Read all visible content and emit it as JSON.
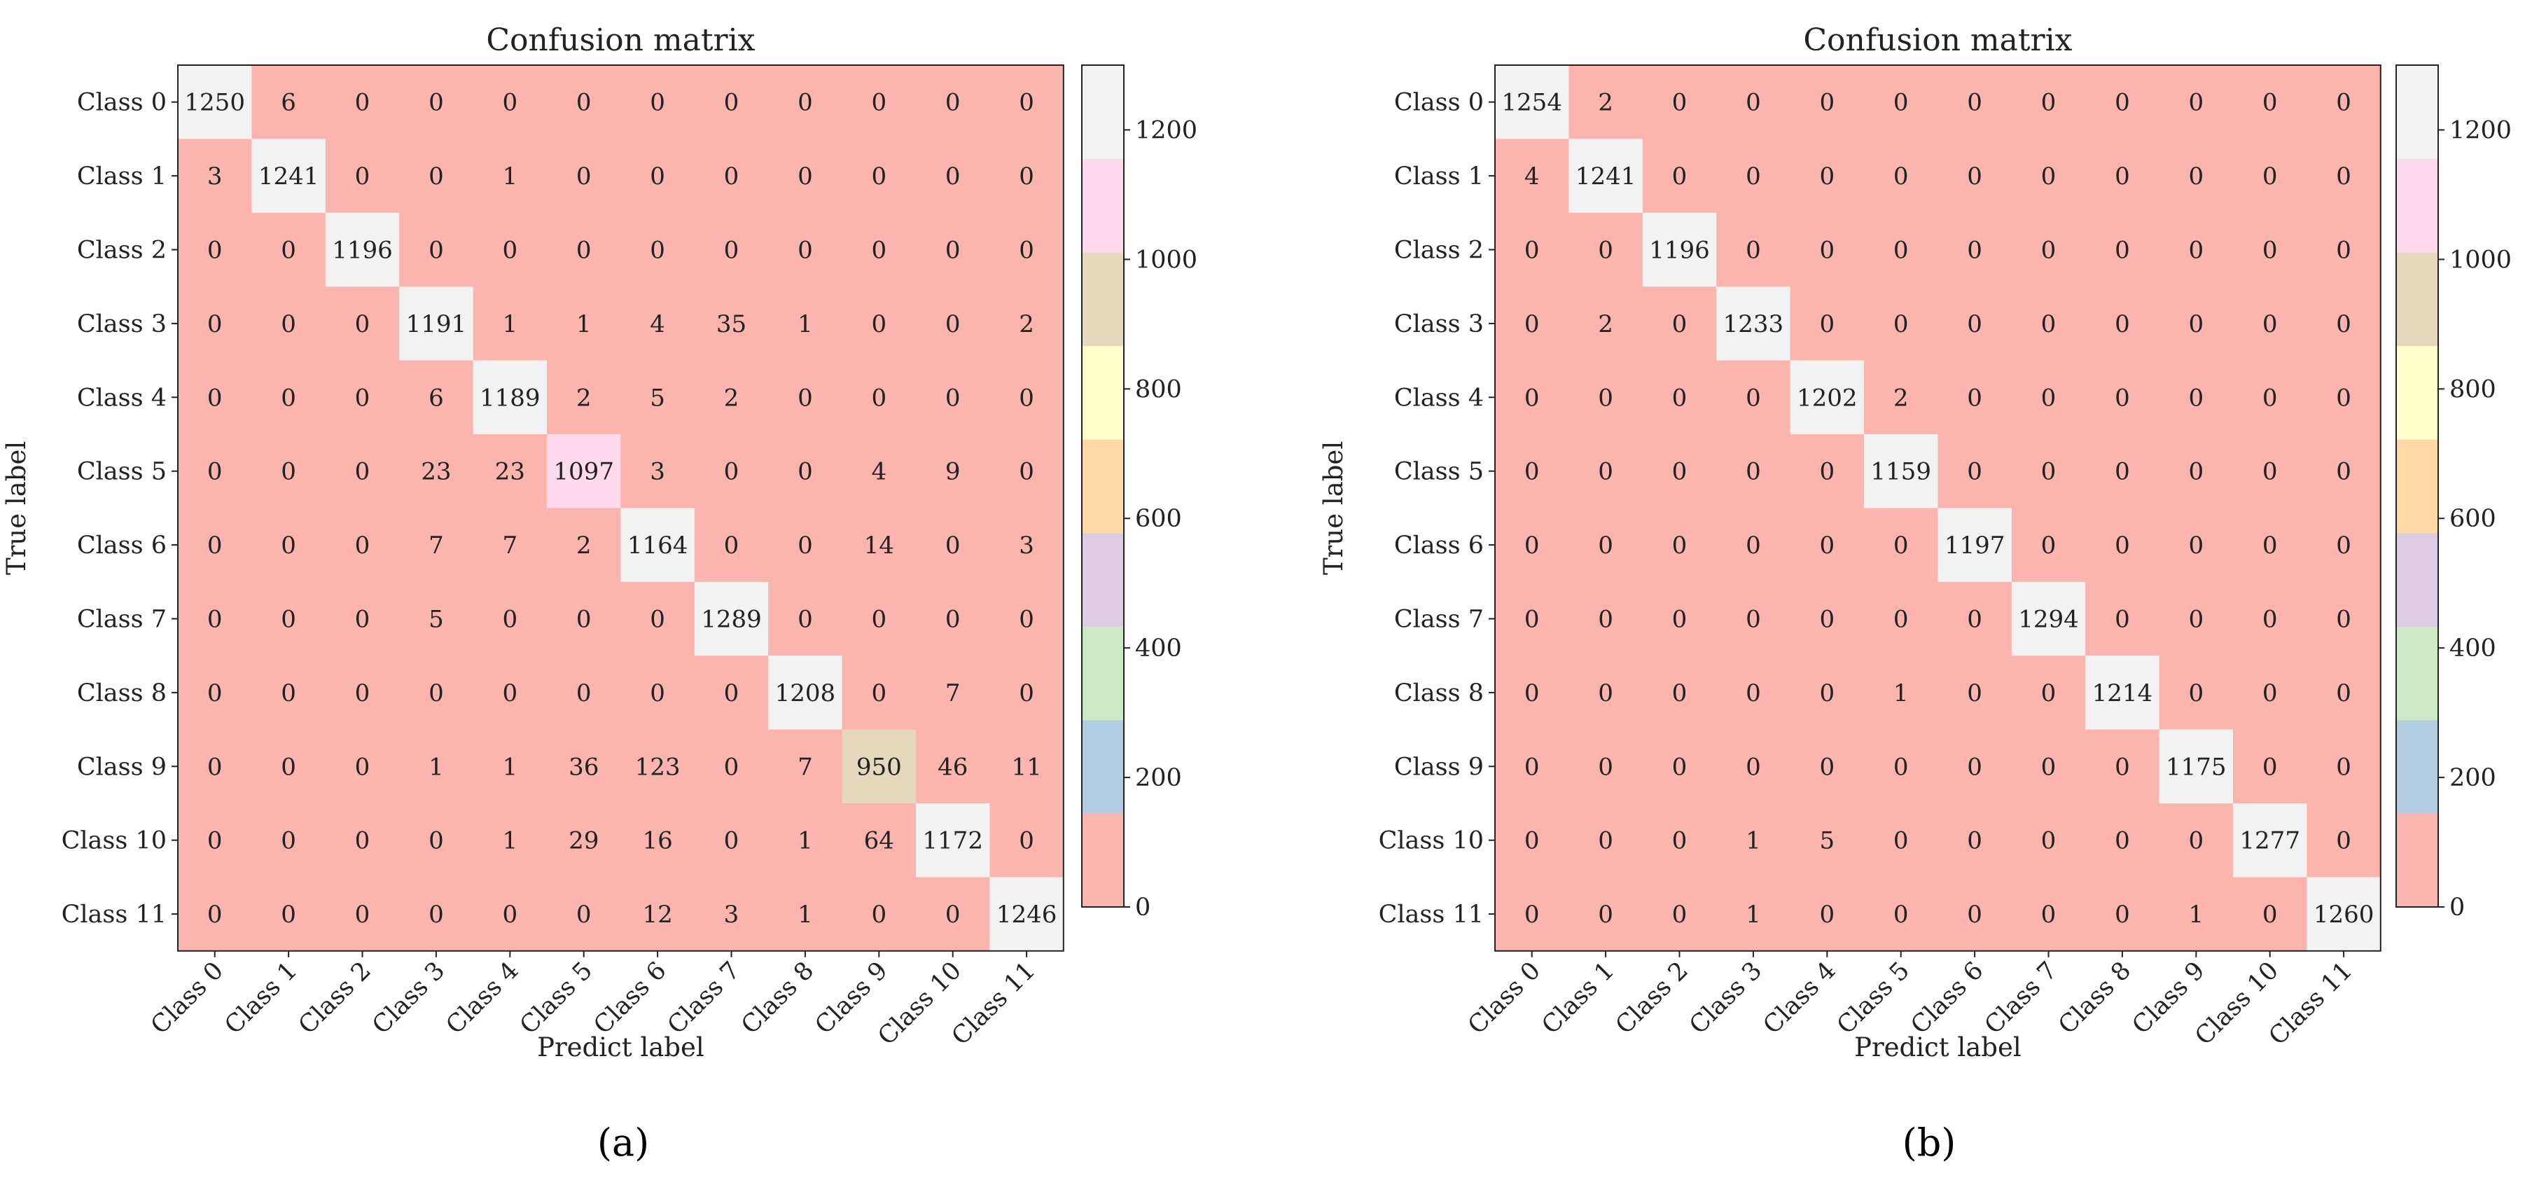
{
  "chart_data": [
    {
      "type": "heatmap",
      "panel_label": "(a)",
      "title": "Confusion matrix",
      "xlabel": "Predict label",
      "ylabel": "True label",
      "row_labels": [
        "Class 0",
        "Class 1",
        "Class 2",
        "Class 3",
        "Class 4",
        "Class 5",
        "Class 6",
        "Class 7",
        "Class 8",
        "Class 9",
        "Class 10",
        "Class 11"
      ],
      "col_labels": [
        "Class 0",
        "Class 1",
        "Class 2",
        "Class 3",
        "Class 4",
        "Class 5",
        "Class 6",
        "Class 7",
        "Class 8",
        "Class 9",
        "Class 10",
        "Class 11"
      ],
      "matrix": [
        [
          1250,
          6,
          0,
          0,
          0,
          0,
          0,
          0,
          0,
          0,
          0,
          0
        ],
        [
          3,
          1241,
          0,
          0,
          1,
          0,
          0,
          0,
          0,
          0,
          0,
          0
        ],
        [
          0,
          0,
          1196,
          0,
          0,
          0,
          0,
          0,
          0,
          0,
          0,
          0
        ],
        [
          0,
          0,
          0,
          1191,
          1,
          1,
          4,
          35,
          1,
          0,
          0,
          2
        ],
        [
          0,
          0,
          0,
          6,
          1189,
          2,
          5,
          2,
          0,
          0,
          0,
          0
        ],
        [
          0,
          0,
          0,
          23,
          23,
          1097,
          3,
          0,
          0,
          4,
          9,
          0
        ],
        [
          0,
          0,
          0,
          7,
          7,
          2,
          1164,
          0,
          0,
          14,
          0,
          3
        ],
        [
          0,
          0,
          0,
          5,
          0,
          0,
          0,
          1289,
          0,
          0,
          0,
          0
        ],
        [
          0,
          0,
          0,
          0,
          0,
          0,
          0,
          0,
          1208,
          0,
          7,
          0
        ],
        [
          0,
          0,
          0,
          1,
          1,
          36,
          123,
          0,
          7,
          950,
          46,
          11
        ],
        [
          0,
          0,
          0,
          0,
          1,
          29,
          16,
          0,
          1,
          64,
          1172,
          0
        ],
        [
          0,
          0,
          0,
          0,
          0,
          0,
          12,
          3,
          1,
          0,
          0,
          1246
        ]
      ],
      "colorbar": {
        "min": 0,
        "max": 1300,
        "ticks": [
          0,
          200,
          400,
          600,
          800,
          1000,
          1200
        ],
        "tick_labels": [
          "0",
          "200",
          "400",
          "600",
          "800",
          "1000",
          "1200"
        ],
        "colors": [
          "#fbb4ae",
          "#b3cde3",
          "#ccebc5",
          "#decbe4",
          "#fed9a6",
          "#ffffcc",
          "#e5d8bd",
          "#fddaec",
          "#f2f2f2"
        ]
      }
    },
    {
      "type": "heatmap",
      "panel_label": "(b)",
      "title": "Confusion matrix",
      "xlabel": "Predict label",
      "ylabel": "True label",
      "row_labels": [
        "Class 0",
        "Class 1",
        "Class 2",
        "Class 3",
        "Class 4",
        "Class 5",
        "Class 6",
        "Class 7",
        "Class 8",
        "Class 9",
        "Class 10",
        "Class 11"
      ],
      "col_labels": [
        "Class 0",
        "Class 1",
        "Class 2",
        "Class 3",
        "Class 4",
        "Class 5",
        "Class 6",
        "Class 7",
        "Class 8",
        "Class 9",
        "Class 10",
        "Class 11"
      ],
      "matrix": [
        [
          1254,
          2,
          0,
          0,
          0,
          0,
          0,
          0,
          0,
          0,
          0,
          0
        ],
        [
          4,
          1241,
          0,
          0,
          0,
          0,
          0,
          0,
          0,
          0,
          0,
          0
        ],
        [
          0,
          0,
          1196,
          0,
          0,
          0,
          0,
          0,
          0,
          0,
          0,
          0
        ],
        [
          0,
          2,
          0,
          1233,
          0,
          0,
          0,
          0,
          0,
          0,
          0,
          0
        ],
        [
          0,
          0,
          0,
          0,
          1202,
          2,
          0,
          0,
          0,
          0,
          0,
          0
        ],
        [
          0,
          0,
          0,
          0,
          0,
          1159,
          0,
          0,
          0,
          0,
          0,
          0
        ],
        [
          0,
          0,
          0,
          0,
          0,
          0,
          1197,
          0,
          0,
          0,
          0,
          0
        ],
        [
          0,
          0,
          0,
          0,
          0,
          0,
          0,
          1294,
          0,
          0,
          0,
          0
        ],
        [
          0,
          0,
          0,
          0,
          0,
          1,
          0,
          0,
          1214,
          0,
          0,
          0
        ],
        [
          0,
          0,
          0,
          0,
          0,
          0,
          0,
          0,
          0,
          1175,
          0,
          0
        ],
        [
          0,
          0,
          0,
          1,
          5,
          0,
          0,
          0,
          0,
          0,
          1277,
          0
        ],
        [
          0,
          0,
          0,
          1,
          0,
          0,
          0,
          0,
          0,
          1,
          0,
          1260
        ]
      ],
      "colorbar": {
        "min": 0,
        "max": 1300,
        "ticks": [
          0,
          200,
          400,
          600,
          800,
          1000,
          1200
        ],
        "tick_labels": [
          "0",
          "200",
          "400",
          "600",
          "800",
          "1000",
          "1200"
        ],
        "colors": [
          "#fbb4ae",
          "#b3cde3",
          "#ccebc5",
          "#decbe4",
          "#fed9a6",
          "#ffffcc",
          "#e5d8bd",
          "#fddaec",
          "#f2f2f2"
        ]
      }
    }
  ]
}
